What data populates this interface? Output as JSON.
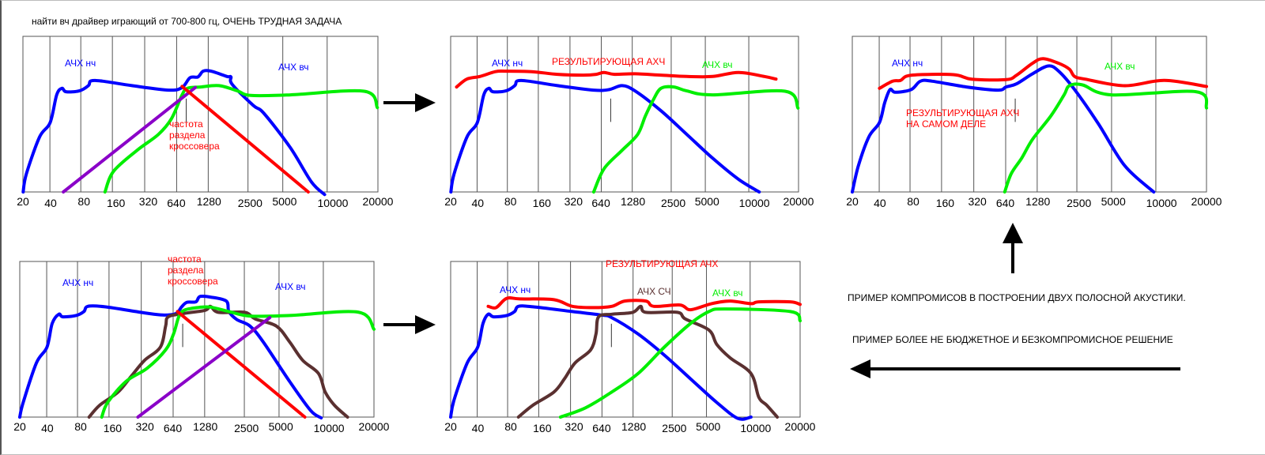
{
  "title": "найти вч драйвер играющий от 700-800 гц, ОЧЕНЬ ТРУДНАЯ ЗАДАЧА",
  "tick_labels": [
    "20",
    "40",
    "80",
    "160",
    "320",
    "640",
    "1280",
    "2500",
    "5000",
    "10000",
    "20000"
  ],
  "colors": {
    "low": "#0000ff",
    "high": "#00ee00",
    "result": "#ff0000",
    "mid": "#5a3030",
    "slope_low": "#ff0000",
    "slope_high": "#8a00c8",
    "grid": "#555555"
  },
  "panels": {
    "p1": {
      "low_label": "АЧХ нч",
      "high_label": "АЧХ вч",
      "crossover_label": [
        "частота",
        "раздела",
        "кроссовера"
      ]
    },
    "p2": {
      "low_label": "АЧХ нч",
      "result_label": "РЕЗУЛЬТИРУЮЩАЯ АХЧ",
      "high_label": "АЧХ вч"
    },
    "p3": {
      "low_label": "АЧХ нч",
      "high_label": "АЧХ вч",
      "result_label": [
        "РЕЗУЛЬТИРУЮЩАЯ АХЧ",
        "НА САМОМ ДЕЛЕ"
      ]
    },
    "p4": {
      "low_label": "АЧХ нч",
      "high_label": "АЧХ вч",
      "crossover_label": [
        "частота",
        "раздела",
        "кроссовера"
      ]
    },
    "p5": {
      "result_label": "РЕЗУЛЬТИРУЮЩАЯ АЧХ",
      "low_label": "АЧХ нч",
      "mid_label": "АЧХ СЧ",
      "high_label": "АЧХ вч"
    }
  },
  "notes": {
    "compromise": "ПРИМЕР КОМПРОМИСОВ В ПОСТРОЕНИИ ДВУХ ПОЛОСНОЙ АКУСТИКИ.",
    "no_compromise": "ПРИМЕР БОЛЕЕ НЕ БЮДЖЕТНОЕ И БЕЗКОМПРОМИСНОЕ РЕШЕНИЕ"
  },
  "arrows": [
    "arrow-right",
    "arrow-right",
    "arrow-up",
    "arrow-left"
  ]
}
